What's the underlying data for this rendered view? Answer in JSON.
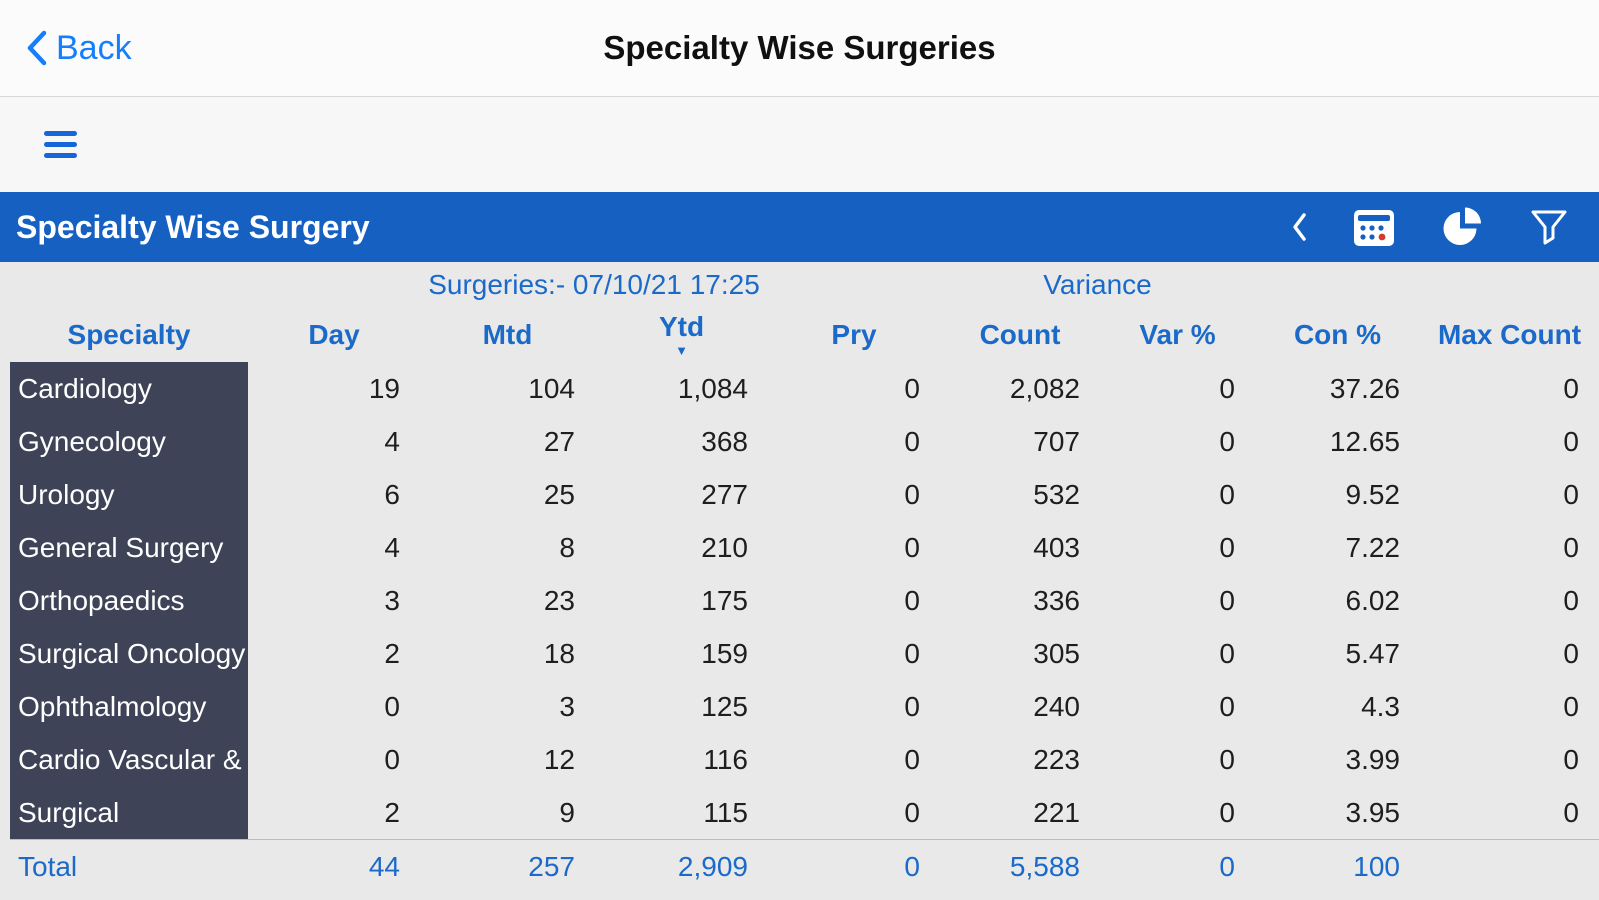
{
  "nav": {
    "back_label": "Back",
    "title": "Specialty Wise Surgeries"
  },
  "report": {
    "title": "Specialty Wise Surgery",
    "icons": [
      "collapse-chevron",
      "calendar",
      "pie-chart",
      "filter"
    ],
    "bar_color": "#1560c0"
  },
  "table": {
    "group_headers": {
      "surgeries": "Surgeries:- 07/10/21 17:25",
      "variance": "Variance"
    },
    "columns": [
      "Specialty",
      "Day",
      "Mtd",
      "Ytd",
      "Pry",
      "Count",
      "Var %",
      "Con %",
      "Max Count"
    ],
    "sorted_column": "Ytd",
    "rows": [
      {
        "specialty": "Cardiology",
        "values": [
          "19",
          "104",
          "1,084",
          "0",
          "2,082",
          "0",
          "37.26",
          "0"
        ]
      },
      {
        "specialty": "Gynecology",
        "values": [
          "4",
          "27",
          "368",
          "0",
          "707",
          "0",
          "12.65",
          "0"
        ]
      },
      {
        "specialty": "Urology",
        "values": [
          "6",
          "25",
          "277",
          "0",
          "532",
          "0",
          "9.52",
          "0"
        ]
      },
      {
        "specialty": "General Surgery",
        "values": [
          "4",
          "8",
          "210",
          "0",
          "403",
          "0",
          "7.22",
          "0"
        ]
      },
      {
        "specialty": "Orthopaedics",
        "values": [
          "3",
          "23",
          "175",
          "0",
          "336",
          "0",
          "6.02",
          "0"
        ]
      },
      {
        "specialty": "Surgical Oncology",
        "values": [
          "2",
          "18",
          "159",
          "0",
          "305",
          "0",
          "5.47",
          "0"
        ]
      },
      {
        "specialty": "Ophthalmology",
        "values": [
          "0",
          "3",
          "125",
          "0",
          "240",
          "0",
          "4.3",
          "0"
        ]
      },
      {
        "specialty": "Cardio Vascular &",
        "values": [
          "0",
          "12",
          "116",
          "0",
          "223",
          "0",
          "3.99",
          "0"
        ]
      },
      {
        "specialty": "Surgical",
        "values": [
          "2",
          "9",
          "115",
          "0",
          "221",
          "0",
          "3.95",
          "0"
        ]
      }
    ],
    "total": {
      "label": "Total",
      "values": [
        "44",
        "257",
        "2,909",
        "0",
        "5,588",
        "0",
        "100",
        ""
      ]
    },
    "colors": {
      "header_text": "#1b6ac9",
      "specialty_column_bg": "#3e4357",
      "table_bg": "#e9e9e9"
    }
  }
}
